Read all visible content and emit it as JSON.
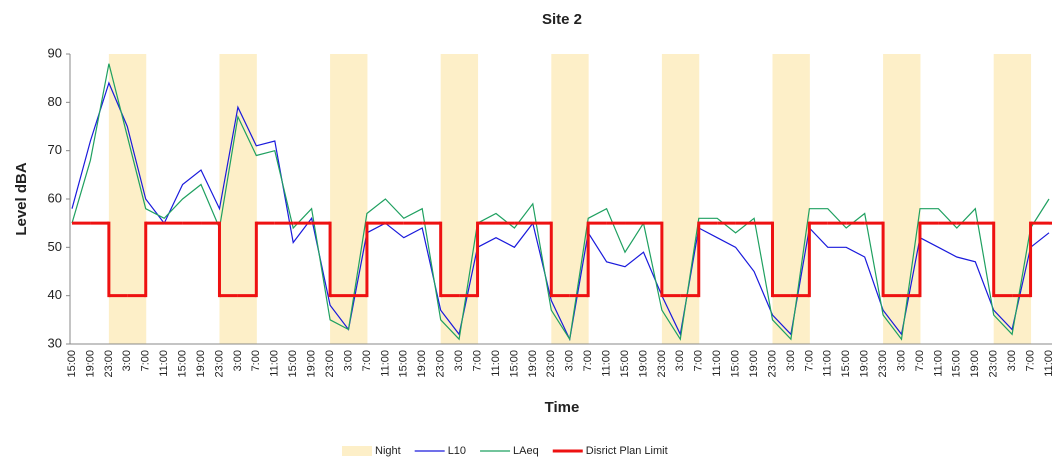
{
  "chart_data": {
    "type": "line",
    "title": "Site 2",
    "x_label": "Time",
    "y_label": "Level dBA",
    "categories": [
      "15:00",
      "19:00",
      "23:00",
      "3:00",
      "7:00",
      "11:00",
      "15:00",
      "19:00",
      "23:00",
      "3:00",
      "7:00",
      "11:00",
      "15:00",
      "19:00",
      "23:00",
      "3:00",
      "7:00",
      "11:00",
      "15:00",
      "19:00",
      "23:00",
      "3:00",
      "7:00",
      "11:00",
      "15:00",
      "19:00",
      "23:00",
      "3:00",
      "7:00",
      "11:00",
      "15:00",
      "19:00",
      "23:00",
      "3:00",
      "7:00",
      "11:00",
      "15:00",
      "19:00",
      "23:00",
      "3:00",
      "7:00",
      "11:00",
      "15:00",
      "19:00",
      "23:00",
      "3:00",
      "7:00",
      "11:00",
      "15:00",
      "19:00",
      "23:00",
      "3:00",
      "7:00",
      "11:00"
    ],
    "series": [
      {
        "name": "Night",
        "kind": "band",
        "color": "#fdefc8",
        "values": [
          null,
          null,
          90,
          90,
          null,
          null,
          null,
          null,
          90,
          90,
          null,
          null,
          null,
          null,
          90,
          90,
          null,
          null,
          null,
          null,
          90,
          90,
          null,
          null,
          null,
          null,
          90,
          90,
          null,
          null,
          null,
          null,
          90,
          90,
          null,
          null,
          null,
          null,
          90,
          90,
          null,
          null,
          null,
          null,
          90,
          90,
          null,
          null,
          null,
          null,
          90,
          90,
          null,
          null
        ]
      },
      {
        "name": "L10",
        "kind": "line",
        "color": "#1a1adc",
        "values": [
          58,
          72,
          84,
          75,
          60,
          55,
          63,
          66,
          58,
          79,
          71,
          72,
          51,
          56,
          38,
          33,
          53,
          55,
          52,
          54,
          37,
          32,
          50,
          52,
          50,
          55,
          39,
          31,
          53,
          47,
          46,
          49,
          40,
          32,
          54,
          52,
          50,
          45,
          36,
          32,
          54,
          50,
          50,
          48,
          37,
          32,
          52,
          50,
          48,
          47,
          37,
          33,
          50,
          53
        ]
      },
      {
        "name": "LAeq",
        "kind": "line",
        "color": "#1fa060",
        "values": [
          55,
          68,
          88,
          73,
          58,
          56,
          60,
          63,
          54,
          77,
          69,
          70,
          54,
          58,
          35,
          33,
          57,
          60,
          56,
          58,
          35,
          31,
          55,
          57,
          54,
          59,
          37,
          31,
          56,
          58,
          49,
          55,
          37,
          31,
          56,
          56,
          53,
          56,
          35,
          31,
          58,
          58,
          54,
          57,
          36,
          31,
          58,
          58,
          54,
          58,
          36,
          32,
          54,
          60
        ]
      },
      {
        "name": "Disrict Plan Limit",
        "kind": "step",
        "color": "#ee1111",
        "values": [
          55,
          55,
          40,
          40,
          55,
          55,
          55,
          55,
          40,
          40,
          55,
          55,
          55,
          55,
          40,
          40,
          55,
          55,
          55,
          55,
          40,
          40,
          55,
          55,
          55,
          55,
          40,
          40,
          55,
          55,
          55,
          55,
          40,
          40,
          55,
          55,
          55,
          55,
          40,
          40,
          55,
          55,
          55,
          55,
          40,
          40,
          55,
          55,
          55,
          55,
          40,
          40,
          55,
          55
        ]
      }
    ],
    "ylim": [
      30,
      90
    ],
    "yticks": [
      30,
      40,
      50,
      60,
      70,
      80,
      90
    ],
    "grid": false,
    "legend": "bottom"
  }
}
